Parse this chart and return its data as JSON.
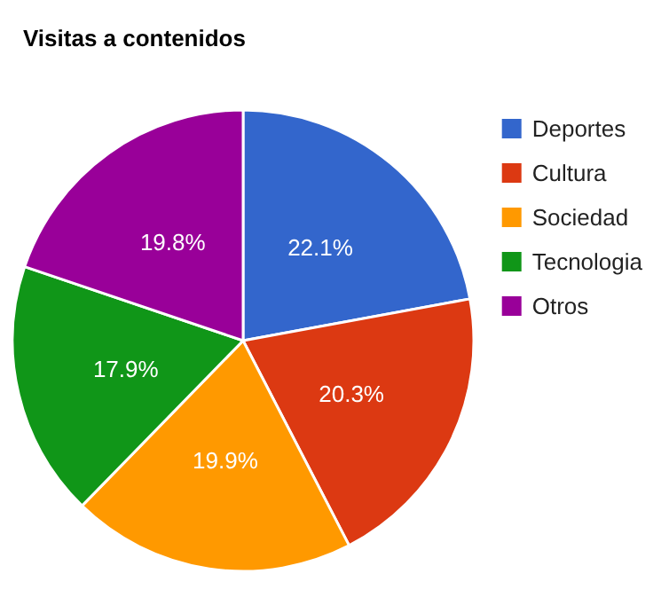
{
  "chart_data": {
    "type": "pie",
    "title": "Visitas a contenidos",
    "categories": [
      "Deportes",
      "Cultura",
      "Sociedad",
      "Tecnologia",
      "Otros"
    ],
    "values": [
      22.1,
      20.3,
      19.9,
      17.9,
      19.8
    ],
    "colors": [
      "#3366cc",
      "#dc3912",
      "#ff9900",
      "#109618",
      "#990099"
    ],
    "value_labels": [
      "22.1%",
      "20.3%",
      "19.9%",
      "17.9%",
      "19.8%"
    ],
    "legend": "top right"
  }
}
